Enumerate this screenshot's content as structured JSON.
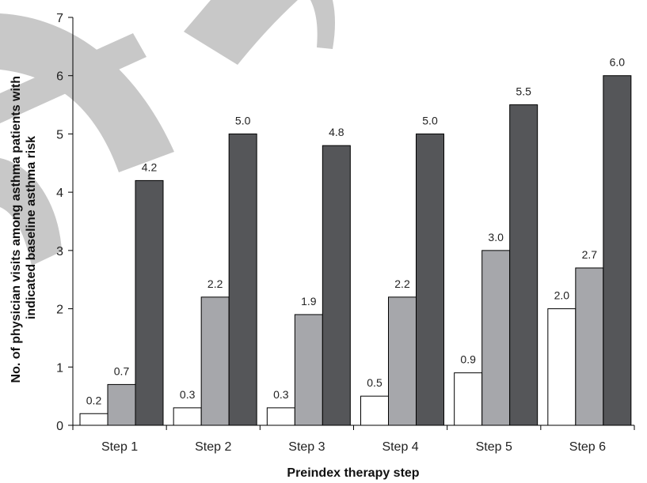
{
  "chart_data": {
    "type": "bar",
    "title": "",
    "xlabel": "Preindex therapy step",
    "ylabel_lines": [
      "No. of physician visits among asthma patients with",
      "indicated baseline asthma risk"
    ],
    "categories": [
      "Step 1",
      "Step 2",
      "Step 3",
      "Step 4",
      "Step 5",
      "Step 6"
    ],
    "ylim": [
      0,
      7
    ],
    "yticks": [
      "0",
      "1",
      "2",
      "3",
      "4",
      "5",
      "6",
      "7"
    ],
    "grid": false,
    "legend": "none",
    "series": [
      {
        "values": [
          0.2,
          0.3,
          0.3,
          0.5,
          0.9,
          2.0
        ],
        "labels": [
          "0.2",
          "0.3",
          "0.3",
          "0.5",
          "0.9",
          "2.0"
        ],
        "color": "#ffffff"
      },
      {
        "values": [
          0.7,
          2.2,
          1.9,
          2.2,
          3.0,
          2.7
        ],
        "labels": [
          "0.7",
          "2.2",
          "1.9",
          "2.2",
          "3.0",
          "2.7"
        ],
        "color": "#a6a7ab"
      },
      {
        "values": [
          4.2,
          5.0,
          4.8,
          5.0,
          5.5,
          6.0
        ],
        "labels": [
          "4.2",
          "5.0",
          "4.8",
          "5.0",
          "5.5",
          "6.0"
        ],
        "color": "#555659"
      }
    ],
    "watermark_color": "#c8c8c8"
  }
}
